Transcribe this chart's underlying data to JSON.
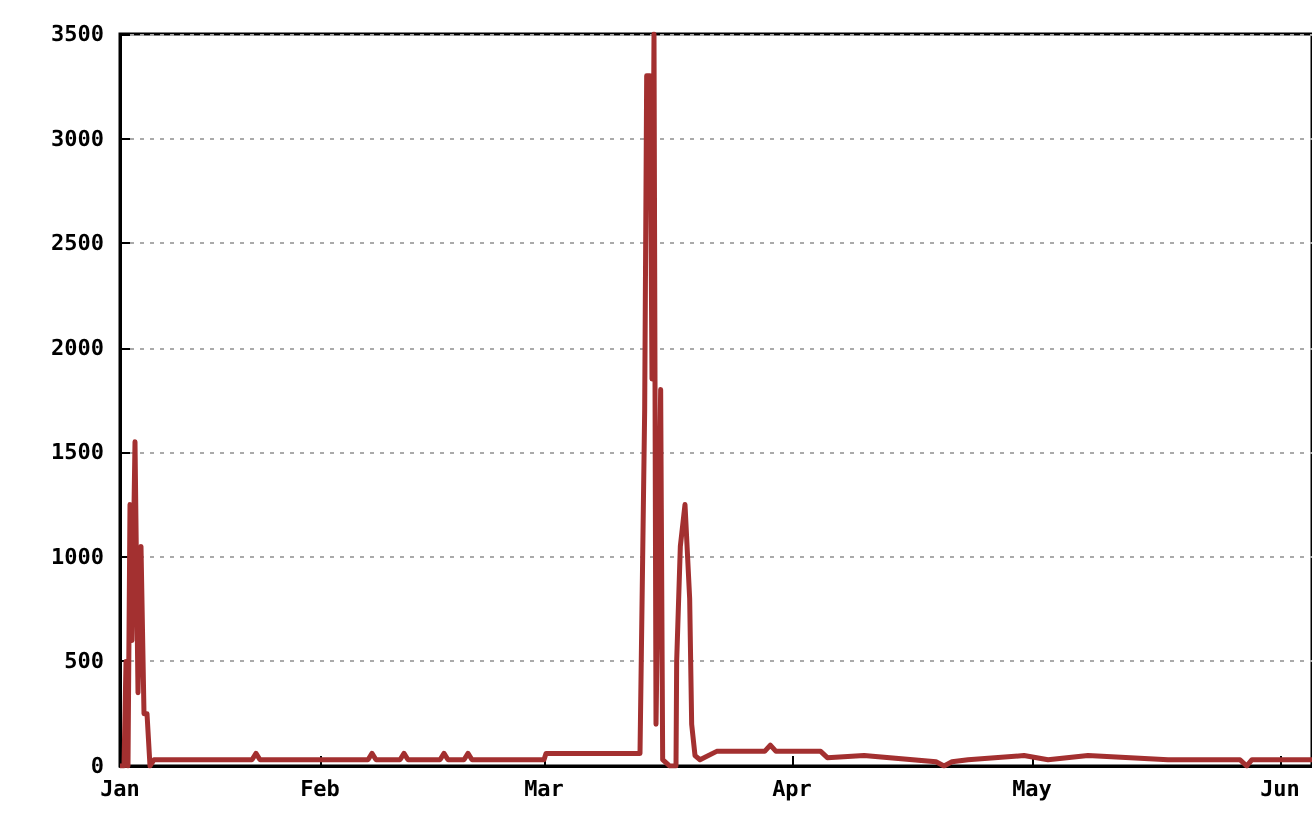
{
  "chart_data": {
    "type": "line",
    "line_style": "solid",
    "marker": "none",
    "grid": "y",
    "xlim": [
      "--01-07",
      "--06-05"
    ],
    "xticks": [
      {
        "value": "--01-07",
        "label": "Jan"
      },
      {
        "value": "--02-01",
        "label": "Feb"
      },
      {
        "value": "--03-01",
        "label": "Mar"
      },
      {
        "value": "--04-01",
        "label": "Apr"
      },
      {
        "value": "--05-01",
        "label": "May"
      },
      {
        "value": "--06-01",
        "label": "Jun"
      }
    ],
    "ylim": [
      0,
      3500
    ],
    "yticks": [
      0,
      500,
      1000,
      1500,
      2000,
      2500,
      3000,
      3500
    ],
    "series": [
      {
        "color": "#a33030",
        "x": [
          "--01-07T00:00",
          "--01-07T12:00",
          "--01-07T18:00",
          "--01-08T00:00",
          "--01-08T06:00",
          "--01-08T12:00",
          "--01-08T21:00",
          "--01-09T06:00",
          "--01-09T15:00",
          "--01-10T00:00",
          "--01-10T09:00",
          "--01-10T18:00",
          "--01-11T06:00",
          "--01-23T12:00",
          "--01-24T00:00",
          "--01-24T12:00",
          "--02-07T00:00",
          "--02-07T12:00",
          "--02-08T00:00",
          "--02-11T00:00",
          "--02-11T12:00",
          "--02-12T00:00",
          "--02-16T00:00",
          "--02-16T12:00",
          "--02-17T00:00",
          "--02-19T00:00",
          "--02-19T12:00",
          "--02-20T00:00",
          "--03-01T00:00",
          "--03-01T06:00",
          "--03-13T00:00",
          "--03-13T14:00",
          "--03-13T20:00",
          "--03-14T06:00",
          "--03-14T12:00",
          "--03-14T18:00",
          "--03-14T22:00",
          "--03-15T00:00",
          "--03-15T14:00",
          "--03-15T20:00",
          "--03-16T17:00",
          "--03-17T12:00",
          "--03-17T14:00",
          "--03-18T01:00",
          "--03-18T15:00",
          "--03-19T05:00",
          "--03-19T11:00",
          "--03-19T21:00",
          "--03-20T12:00",
          "--03-22T14:00",
          "--03-28T14:00",
          "--03-29T07:00",
          "--03-30T00:00",
          "--04-04T14:00",
          "--04-05T10:00",
          "--04-10T00:00",
          "--04-19T00:00",
          "--04-20T00:00",
          "--04-21T00:00",
          "--04-23T00:00",
          "--04-30T00:00",
          "--05-03T00:00",
          "--05-08T00:00",
          "--05-18T00:00",
          "--05-27T00:00",
          "--05-27T20:00",
          "--05-28T12:00",
          "--06-05T00:00"
        ],
        "values": [
          0,
          0,
          500,
          0,
          1250,
          600,
          1550,
          350,
          1050,
          250,
          250,
          0,
          30,
          30,
          60,
          30,
          30,
          60,
          30,
          30,
          60,
          30,
          30,
          60,
          30,
          30,
          60,
          30,
          30,
          60,
          60,
          1700,
          3300,
          3300,
          1850,
          3500,
          3500,
          200,
          1800,
          30,
          0,
          0,
          500,
          1050,
          1250,
          800,
          200,
          50,
          30,
          70,
          70,
          100,
          70,
          70,
          40,
          50,
          20,
          0,
          20,
          30,
          50,
          30,
          50,
          30,
          30,
          0,
          30,
          30
        ]
      }
    ]
  }
}
